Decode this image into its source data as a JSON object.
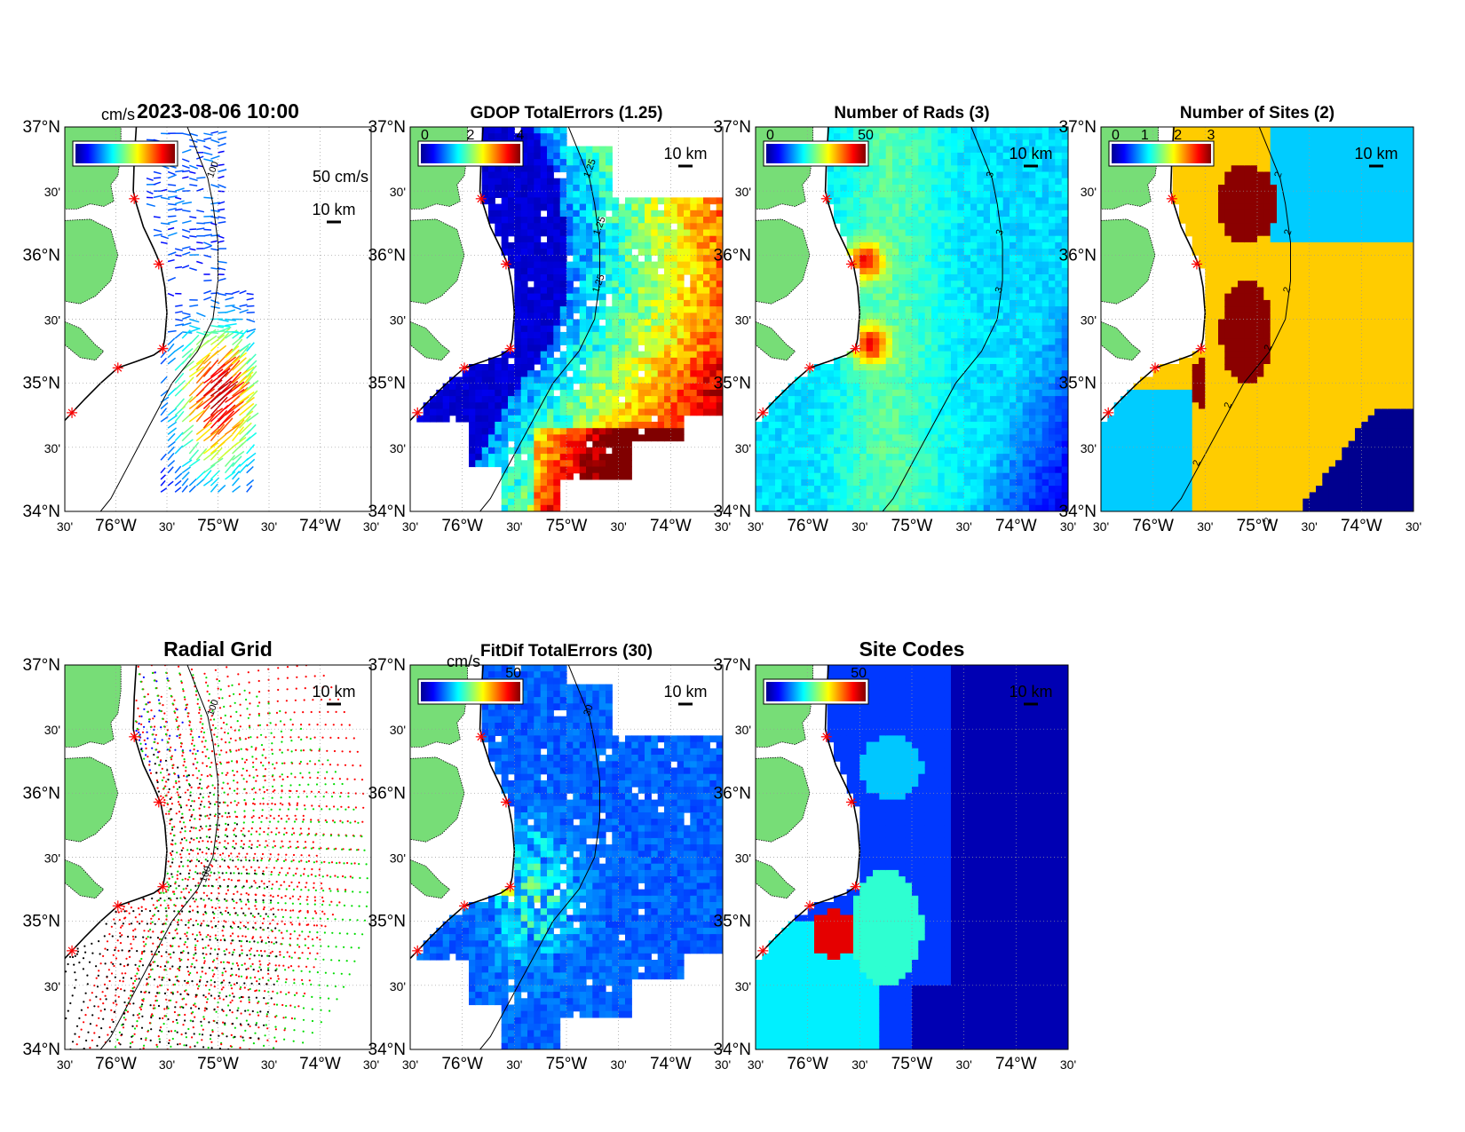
{
  "figure": {
    "timestamp": "2023-08-06 10:00",
    "latitude_ticks": [
      "37°N",
      "30'",
      "36°N",
      "30'",
      "35°N",
      "30'",
      "34°N"
    ],
    "longitude_ticks": [
      "30'",
      "76°W",
      "30'",
      "75°W",
      "30'",
      "74°W",
      "30'"
    ],
    "coast_color": "#77dd77",
    "site_marker_color": "#ff0000",
    "colormap": "jet",
    "lon_range": [
      -76.5,
      -73.5
    ],
    "lat_range": [
      34.0,
      37.0
    ]
  },
  "panels": [
    {
      "id": "currents",
      "title": "2023-08-06 10:00",
      "colorbar_units": "cm/s",
      "colorbar_ticks": [],
      "scale_vector_label": "50 cm/s",
      "scale_bar_label": "10 km",
      "contour_labels": [
        "100"
      ],
      "field": "vectors"
    },
    {
      "id": "gdop",
      "title": "GDOP TotalErrors (1.25)",
      "colorbar_units": "",
      "colorbar_ticks": [
        "0",
        "2",
        "4"
      ],
      "scale_bar_label": "10 km",
      "contour_labels": [
        "1.25",
        "1.25",
        "1.25"
      ],
      "field": "gdop"
    },
    {
      "id": "nrads",
      "title": "Number of Rads (3)",
      "colorbar_units": "",
      "colorbar_ticks": [
        "0",
        "50"
      ],
      "scale_bar_label": "10 km",
      "contour_labels": [
        "3",
        "3",
        "3"
      ],
      "field": "nrads"
    },
    {
      "id": "nsites",
      "title": "Number of Sites (2)",
      "colorbar_units": "",
      "colorbar_ticks": [
        "0",
        "1",
        "2",
        "3"
      ],
      "scale_bar_label": "10 km",
      "contour_labels": [
        "2",
        "2",
        "2",
        "2",
        "2",
        "2",
        "2"
      ],
      "field": "nsites"
    },
    {
      "id": "radial-grid",
      "title": "Radial Grid",
      "colorbar_units": "",
      "colorbar_ticks": [],
      "scale_bar_label": "10 km",
      "contour_labels": [
        "100",
        "100"
      ],
      "field": "radial",
      "site_colors": [
        "#0000ff",
        "#ff0000",
        "#00dd00",
        "#ff0000",
        "#000000"
      ]
    },
    {
      "id": "fitdif",
      "title": "FitDif TotalErrors (30)",
      "colorbar_units": "cm/s",
      "colorbar_ticks": [
        "50"
      ],
      "scale_bar_label": "10 km",
      "contour_labels": [
        "30"
      ],
      "field": "fitdif"
    },
    {
      "id": "site-codes",
      "title": "Site Codes",
      "colorbar_units": "",
      "colorbar_ticks": [
        "50"
      ],
      "scale_bar_label": "10 km",
      "contour_labels": [],
      "field": "sitecodes"
    }
  ],
  "radar_sites": [
    {
      "lon": -75.82,
      "lat": 36.44
    },
    {
      "lon": -75.58,
      "lat": 35.93
    },
    {
      "lon": -75.54,
      "lat": 35.27
    },
    {
      "lon": -75.98,
      "lat": 35.12
    },
    {
      "lon": -76.43,
      "lat": 34.77
    }
  ]
}
